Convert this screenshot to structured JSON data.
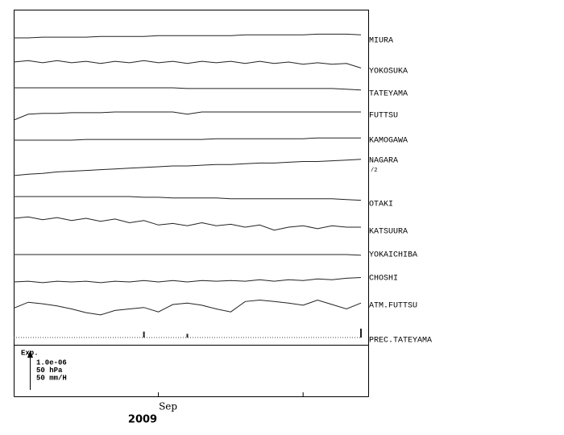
{
  "chart_data": {
    "type": "multitrace",
    "categories": [
      null,
      null,
      null,
      null,
      null,
      null,
      null,
      null,
      null,
      null,
      "Sep",
      null,
      null,
      null,
      null,
      null,
      null,
      null,
      null,
      null,
      null,
      null,
      null,
      null,
      null
    ],
    "xticks": [
      {
        "value": 10,
        "label": "Sep"
      },
      20
    ],
    "xlabel": "2009",
    "scale_title": "Exp.",
    "scale_bar": [
      {
        "value": 1e-06,
        "label": "1.0e-06"
      },
      {
        "value": 50,
        "label": "50 hPa"
      },
      {
        "value": 50,
        "label": "50 mm/H"
      }
    ],
    "series": [
      {
        "name": "MIURA",
        "scale": 0,
        "values": [
          0,
          0,
          2e-08,
          2e-08,
          2e-08,
          2e-08,
          4e-08,
          4e-08,
          4e-08,
          4e-08,
          6e-08,
          6e-08,
          6e-08,
          6e-08,
          6e-08,
          6e-08,
          8e-08,
          8e-08,
          8e-08,
          8e-08,
          8e-08,
          1e-07,
          1e-07,
          1e-07,
          8e-08
        ]
      },
      {
        "name": "YOKOSUKA",
        "scale": 0,
        "values": [
          0,
          4e-08,
          -2e-08,
          4e-08,
          -2e-08,
          2e-08,
          -4e-08,
          2e-08,
          -2e-08,
          4e-08,
          -2e-08,
          2e-08,
          -4e-08,
          2e-08,
          -2e-08,
          2e-08,
          -4e-08,
          2e-08,
          -4e-08,
          0,
          -6e-08,
          -2e-08,
          -6e-08,
          -4e-08,
          -1.6e-07
        ]
      },
      {
        "name": "TATEYAMA",
        "scale": 0,
        "values": [
          0,
          0,
          0,
          0,
          0,
          0,
          0,
          0,
          0,
          0,
          0,
          0,
          -2e-08,
          -2e-08,
          -2e-08,
          -2e-08,
          -2e-08,
          -2e-08,
          -2e-08,
          -2e-08,
          -2e-08,
          -2e-08,
          -2e-08,
          -4e-08,
          -6e-08
        ]
      },
      {
        "name": "FUTTSU",
        "scale": 0,
        "values": [
          -2.2e-07,
          -6e-08,
          -4e-08,
          -4e-08,
          -2e-08,
          -2e-08,
          -2e-08,
          0,
          0,
          0,
          0,
          0,
          -6e-08,
          0,
          0,
          0,
          0,
          0,
          0,
          0,
          0,
          0,
          0,
          0,
          0
        ]
      },
      {
        "name": "KAMOGAWA",
        "scale": 0,
        "values": [
          0,
          0,
          0,
          0,
          0,
          2e-08,
          2e-08,
          2e-08,
          2e-08,
          2e-08,
          2e-08,
          2e-08,
          2e-08,
          2e-08,
          4e-08,
          4e-08,
          4e-08,
          4e-08,
          4e-08,
          4e-08,
          4e-08,
          6e-08,
          6e-08,
          6e-08,
          6e-08
        ]
      },
      {
        "name": "NAGARA",
        "note": "/2",
        "scale": 0,
        "values": [
          0,
          4e-08,
          6e-08,
          1e-07,
          1.2e-07,
          1.4e-07,
          1.6e-07,
          1.8e-07,
          2e-07,
          2.2e-07,
          2.4e-07,
          2.6e-07,
          2.6e-07,
          2.8e-07,
          3e-07,
          3e-07,
          3.2e-07,
          3.4e-07,
          3.4e-07,
          3.6e-07,
          3.8e-07,
          3.8e-07,
          4e-07,
          4.2e-07,
          4.4e-07
        ]
      },
      {
        "name": "OTAKI",
        "scale": 0,
        "values": [
          0,
          0,
          0,
          0,
          0,
          0,
          0,
          0,
          0,
          -2e-08,
          -2e-08,
          -4e-08,
          -4e-08,
          -4e-08,
          -4e-08,
          -6e-08,
          -6e-08,
          -6e-08,
          -6e-08,
          -6e-08,
          -6e-08,
          -6e-08,
          -6e-08,
          -8e-08,
          -1e-07
        ]
      },
      {
        "name": "KATSUURA",
        "scale": 0,
        "values": [
          0,
          4e-08,
          -4e-08,
          2e-08,
          -6e-08,
          0,
          -8e-08,
          -2e-08,
          -1.2e-07,
          -6e-08,
          -1.8e-07,
          -1.4e-07,
          -2e-07,
          -1.2e-07,
          -2e-07,
          -1.6e-07,
          -2.4e-07,
          -1.8e-07,
          -3.2e-07,
          -2.4e-07,
          -2e-07,
          -2.8e-07,
          -2e-07,
          -2.4e-07,
          -2.4e-07
        ]
      },
      {
        "name": "YOKAICHIBA",
        "scale": 0,
        "values": [
          0,
          0,
          0,
          0,
          0,
          0,
          0,
          0,
          0,
          0,
          0,
          0,
          0,
          0,
          0,
          0,
          0,
          0,
          0,
          0,
          0,
          0,
          0,
          0,
          -2e-08
        ]
      },
      {
        "name": "CHOSHI",
        "scale": 0,
        "values": [
          0,
          2e-08,
          -2e-08,
          2e-08,
          0,
          2e-08,
          -2e-08,
          2e-08,
          0,
          4e-08,
          0,
          4e-08,
          0,
          4e-08,
          2e-08,
          4e-08,
          2e-08,
          6e-08,
          2e-08,
          6e-08,
          4e-08,
          8e-08,
          6e-08,
          1e-07,
          1.2e-07
        ]
      },
      {
        "name": "ATM.FUTTSU",
        "scale": 1,
        "values": [
          -5,
          3,
          1,
          -2,
          -6,
          -11,
          -14,
          -8,
          -6,
          -4,
          -10,
          0,
          2,
          -1,
          -6,
          -10,
          4,
          6,
          4,
          2,
          -1,
          6,
          0,
          -6,
          2
        ]
      },
      {
        "name": "PREC.TATEYAMA",
        "scale": 2,
        "bars": true,
        "values": [
          0,
          0,
          0,
          0,
          0,
          0,
          0,
          0,
          0,
          8,
          0,
          0,
          5,
          0,
          0,
          0,
          0,
          0,
          0,
          0,
          0,
          0,
          0,
          0,
          12
        ]
      }
    ]
  }
}
